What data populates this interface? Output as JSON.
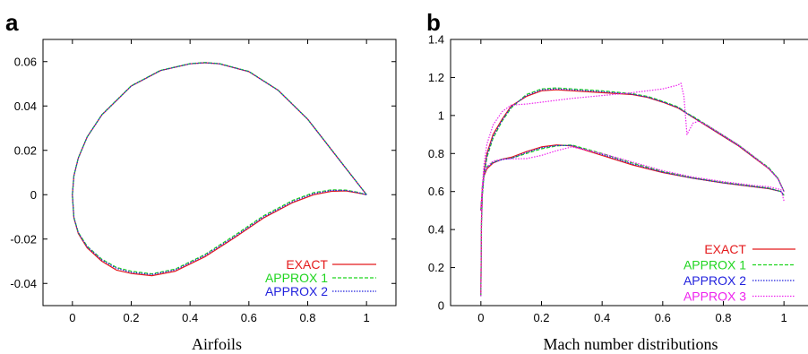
{
  "chart_data": [
    {
      "type": "line",
      "panel_label": "a",
      "caption": "Airfoils",
      "xlim": [
        -0.1,
        1.1
      ],
      "ylim": [
        -0.05,
        0.07
      ],
      "xticks": [
        0,
        0.2,
        0.4,
        0.6,
        0.8,
        1
      ],
      "yticks": [
        -0.04,
        -0.02,
        0,
        0.02,
        0.04,
        0.06
      ],
      "xtick_labels": [
        "0",
        "0.2",
        "0.4",
        "0.6",
        "0.8",
        "1"
      ],
      "ytick_labels": [
        "-0.04",
        "-0.02",
        "0",
        "0.02",
        "0.04",
        "0.06"
      ],
      "grid": false,
      "legend_position": "bottom-right",
      "series": [
        {
          "name": "EXACT",
          "color": "#e41a1c",
          "dash": "solid",
          "x": [
            1.0,
            0.95,
            0.9,
            0.85,
            0.8,
            0.7,
            0.6,
            0.5,
            0.45,
            0.4,
            0.3,
            0.2,
            0.1,
            0.05,
            0.02,
            0.005,
            0.0,
            0.005,
            0.02,
            0.05,
            0.1,
            0.15,
            0.2,
            0.27,
            0.35,
            0.45,
            0.55,
            0.65,
            0.75,
            0.82,
            0.88,
            0.93,
            0.97,
            1.0
          ],
          "y": [
            0.0,
            0.0085,
            0.017,
            0.0255,
            0.034,
            0.047,
            0.0555,
            0.059,
            0.0595,
            0.059,
            0.056,
            0.049,
            0.036,
            0.026,
            0.0165,
            0.0085,
            0.0,
            -0.0105,
            -0.0175,
            -0.024,
            -0.03,
            -0.034,
            -0.0355,
            -0.0365,
            -0.0345,
            -0.028,
            -0.0195,
            -0.0105,
            -0.0035,
            0.0,
            0.0015,
            0.0017,
            0.0008,
            0.0
          ]
        },
        {
          "name": "APPROX 1",
          "color": "#1fd51f",
          "dash": "dashed",
          "x": [
            1.0,
            0.95,
            0.9,
            0.85,
            0.8,
            0.7,
            0.6,
            0.5,
            0.45,
            0.4,
            0.3,
            0.2,
            0.1,
            0.05,
            0.02,
            0.005,
            0.0,
            0.005,
            0.02,
            0.05,
            0.1,
            0.15,
            0.2,
            0.27,
            0.35,
            0.45,
            0.55,
            0.65,
            0.75,
            0.82,
            0.88,
            0.93,
            0.97,
            1.0
          ],
          "y": [
            0.0,
            0.0086,
            0.0171,
            0.0256,
            0.0341,
            0.0471,
            0.0556,
            0.0591,
            0.0596,
            0.0591,
            0.0561,
            0.0491,
            0.0361,
            0.0261,
            0.0166,
            0.0086,
            0.0,
            -0.0102,
            -0.017,
            -0.0232,
            -0.0291,
            -0.0328,
            -0.0345,
            -0.0357,
            -0.0335,
            -0.027,
            -0.0185,
            -0.0095,
            -0.0025,
            0.0009,
            0.0022,
            0.0021,
            0.0011,
            0.0
          ]
        },
        {
          "name": "APPROX 2",
          "color": "#2222dd",
          "dash": "dotted",
          "x": [
            1.0,
            0.95,
            0.9,
            0.85,
            0.8,
            0.7,
            0.6,
            0.5,
            0.45,
            0.4,
            0.3,
            0.2,
            0.1,
            0.05,
            0.02,
            0.005,
            0.0,
            0.005,
            0.02,
            0.05,
            0.1,
            0.15,
            0.2,
            0.27,
            0.35,
            0.45,
            0.55,
            0.65,
            0.75,
            0.82,
            0.88,
            0.93,
            0.97,
            1.0
          ],
          "y": [
            0.0,
            0.0085,
            0.017,
            0.0255,
            0.034,
            0.047,
            0.0555,
            0.059,
            0.0595,
            0.059,
            0.056,
            0.049,
            0.036,
            0.026,
            0.0165,
            0.0085,
            0.0,
            -0.0103,
            -0.0172,
            -0.0235,
            -0.0294,
            -0.0332,
            -0.035,
            -0.036,
            -0.0339,
            -0.0274,
            -0.019,
            -0.01,
            -0.003,
            0.0005,
            0.0019,
            0.0019,
            0.001,
            0.0
          ]
        }
      ]
    },
    {
      "type": "line",
      "panel_label": "b",
      "caption": "Mach number distributions",
      "xlim": [
        -0.1,
        1.1
      ],
      "ylim": [
        0,
        1.4
      ],
      "xticks": [
        0,
        0.2,
        0.4,
        0.6,
        0.8,
        1
      ],
      "yticks": [
        0,
        0.2,
        0.4,
        0.6,
        0.8,
        1,
        1.2,
        1.4
      ],
      "xtick_labels": [
        "0",
        "0.2",
        "0.4",
        "0.6",
        "0.8",
        "1"
      ],
      "ytick_labels": [
        "0",
        "0.2",
        "0.4",
        "0.6",
        "0.8",
        "1",
        "1.2",
        "1.4"
      ],
      "grid": false,
      "legend_position": "bottom-right",
      "series": [
        {
          "name": "EXACT",
          "color": "#e41a1c",
          "dash": "solid",
          "segments": [
            {
              "x": [
                0.0,
                0.002,
                0.005,
                0.01,
                0.02,
                0.04,
                0.07,
                0.1,
                0.15,
                0.2,
                0.25,
                0.3,
                0.4,
                0.5,
                0.55,
                0.6,
                0.65,
                0.67,
                0.68,
                0.7,
                0.75,
                0.8,
                0.85,
                0.9,
                0.95,
                0.98,
                1.0
              ],
              "y": [
                0.05,
                0.45,
                0.6,
                0.7,
                0.8,
                0.9,
                0.98,
                1.05,
                1.1,
                1.13,
                1.135,
                1.13,
                1.12,
                1.11,
                1.095,
                1.07,
                1.04,
                1.02,
                1.01,
                0.99,
                0.94,
                0.89,
                0.84,
                0.78,
                0.72,
                0.67,
                0.6
              ]
            },
            {
              "x": [
                0.0,
                0.005,
                0.01,
                0.02,
                0.04,
                0.07,
                0.1,
                0.15,
                0.2,
                0.25,
                0.3,
                0.4,
                0.5,
                0.6,
                0.7,
                0.8,
                0.9,
                0.95,
                0.99,
                1.0
              ],
              "y": [
                0.5,
                0.62,
                0.68,
                0.72,
                0.75,
                0.77,
                0.78,
                0.81,
                0.835,
                0.845,
                0.84,
                0.79,
                0.74,
                0.7,
                0.67,
                0.645,
                0.625,
                0.615,
                0.6,
                0.58
              ]
            }
          ]
        },
        {
          "name": "APPROX 1",
          "color": "#1fd51f",
          "dash": "dashed",
          "segments": [
            {
              "x": [
                0.0,
                0.002,
                0.005,
                0.01,
                0.02,
                0.04,
                0.07,
                0.1,
                0.15,
                0.2,
                0.25,
                0.3,
                0.4,
                0.5,
                0.55,
                0.6,
                0.65,
                0.67,
                0.68,
                0.7,
                0.75,
                0.8,
                0.85,
                0.9,
                0.95,
                0.98,
                1.0
              ],
              "y": [
                0.05,
                0.43,
                0.58,
                0.68,
                0.78,
                0.88,
                0.97,
                1.04,
                1.11,
                1.14,
                1.145,
                1.14,
                1.13,
                1.115,
                1.1,
                1.075,
                1.045,
                1.025,
                1.012,
                0.995,
                0.945,
                0.895,
                0.845,
                0.785,
                0.725,
                0.67,
                0.6
              ]
            },
            {
              "x": [
                0.0,
                0.005,
                0.01,
                0.02,
                0.04,
                0.07,
                0.1,
                0.15,
                0.2,
                0.25,
                0.3,
                0.4,
                0.5,
                0.6,
                0.7,
                0.8,
                0.9,
                0.95,
                0.99,
                1.0
              ],
              "y": [
                0.5,
                0.63,
                0.69,
                0.73,
                0.755,
                0.77,
                0.775,
                0.8,
                0.825,
                0.84,
                0.845,
                0.8,
                0.75,
                0.705,
                0.672,
                0.648,
                0.628,
                0.618,
                0.6,
                0.58
              ]
            }
          ]
        },
        {
          "name": "APPROX 2",
          "color": "#2222dd",
          "dash": "dotted",
          "segments": [
            {
              "x": [
                0.0,
                0.002,
                0.005,
                0.01,
                0.02,
                0.04,
                0.07,
                0.1,
                0.15,
                0.2,
                0.25,
                0.3,
                0.4,
                0.5,
                0.55,
                0.6,
                0.65,
                0.67,
                0.68,
                0.7,
                0.75,
                0.8,
                0.85,
                0.9,
                0.95,
                0.98,
                1.0
              ],
              "y": [
                0.05,
                0.44,
                0.59,
                0.69,
                0.79,
                0.89,
                0.975,
                1.045,
                1.105,
                1.135,
                1.14,
                1.135,
                1.125,
                1.112,
                1.097,
                1.072,
                1.042,
                1.022,
                1.01,
                0.992,
                0.942,
                0.892,
                0.842,
                0.782,
                0.722,
                0.668,
                0.6
              ]
            },
            {
              "x": [
                0.0,
                0.005,
                0.01,
                0.02,
                0.04,
                0.07,
                0.1,
                0.15,
                0.2,
                0.25,
                0.3,
                0.4,
                0.5,
                0.6,
                0.7,
                0.8,
                0.9,
                0.95,
                0.99,
                1.0
              ],
              "y": [
                0.5,
                0.62,
                0.685,
                0.725,
                0.752,
                0.768,
                0.775,
                0.805,
                0.83,
                0.842,
                0.842,
                0.795,
                0.745,
                0.702,
                0.67,
                0.646,
                0.626,
                0.616,
                0.6,
                0.58
              ]
            }
          ]
        },
        {
          "name": "APPROX 3",
          "color": "#ee22ee",
          "dash": "dotted",
          "segments": [
            {
              "x": [
                0.0,
                0.002,
                0.005,
                0.01,
                0.02,
                0.04,
                0.07,
                0.1,
                0.15,
                0.2,
                0.3,
                0.4,
                0.5,
                0.6,
                0.65,
                0.66,
                0.67,
                0.68,
                0.69,
                0.7,
                0.72,
                0.75,
                0.8,
                0.85,
                0.9,
                0.95,
                0.98,
                1.0
              ],
              "y": [
                0.05,
                0.47,
                0.63,
                0.74,
                0.85,
                0.95,
                1.02,
                1.055,
                1.06,
                1.07,
                1.09,
                1.105,
                1.12,
                1.14,
                1.16,
                1.17,
                1.1,
                0.9,
                0.93,
                0.96,
                0.97,
                0.945,
                0.895,
                0.845,
                0.785,
                0.72,
                0.665,
                0.6
              ]
            },
            {
              "x": [
                0.0,
                0.005,
                0.01,
                0.02,
                0.04,
                0.07,
                0.1,
                0.15,
                0.2,
                0.25,
                0.3,
                0.4,
                0.5,
                0.6,
                0.7,
                0.8,
                0.9,
                0.95,
                0.99,
                1.0
              ],
              "y": [
                0.5,
                0.63,
                0.69,
                0.73,
                0.76,
                0.77,
                0.772,
                0.773,
                0.79,
                0.815,
                0.835,
                0.8,
                0.755,
                0.71,
                0.676,
                0.652,
                0.632,
                0.625,
                0.61,
                0.55
              ]
            }
          ]
        }
      ]
    }
  ]
}
